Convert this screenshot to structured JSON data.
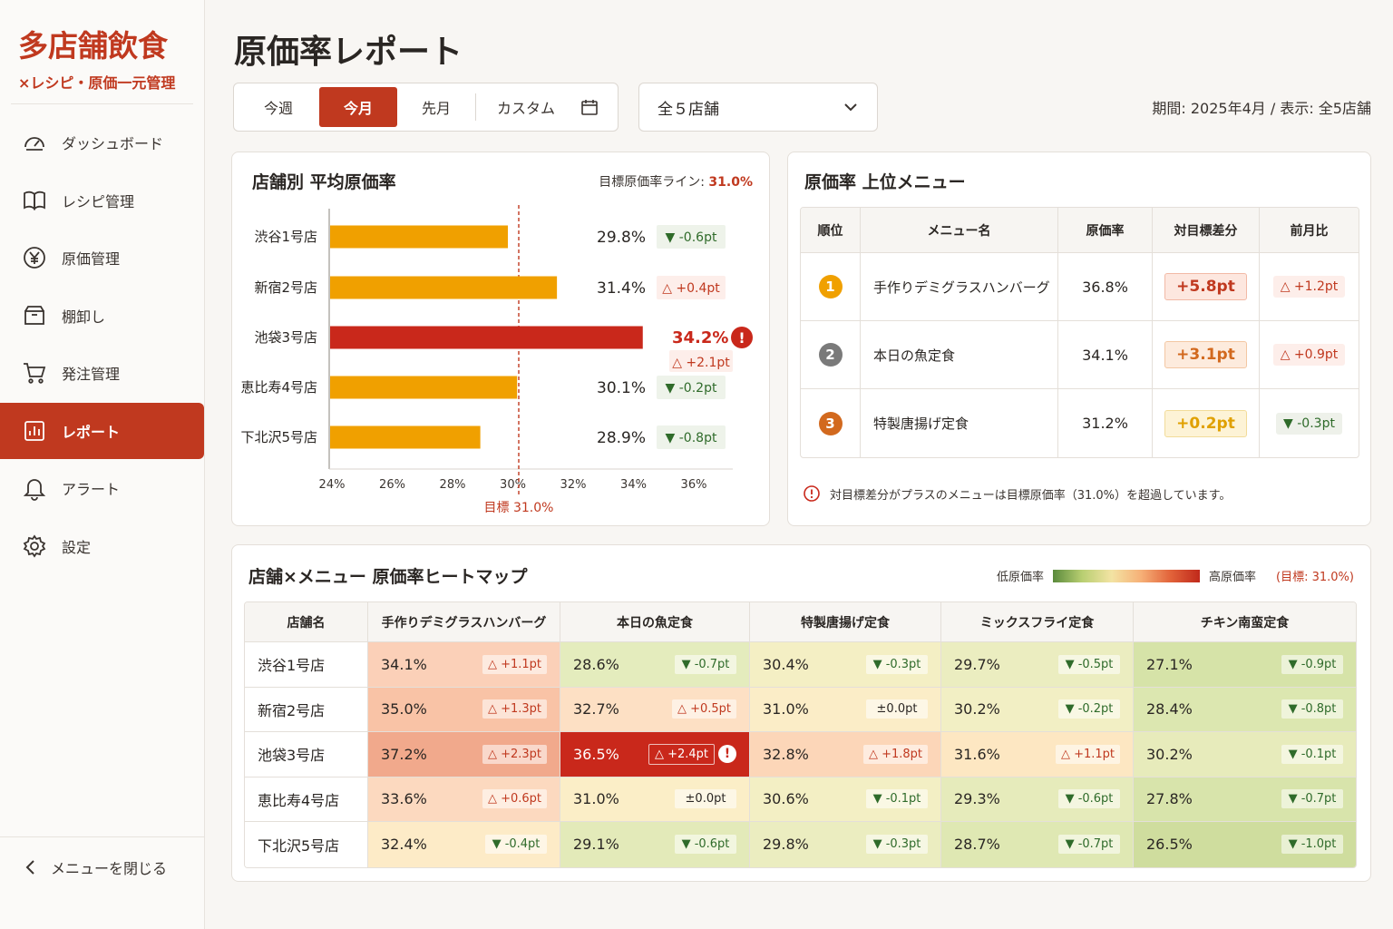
{
  "brand": {
    "title": "多店舗飲食",
    "subtitle": "×レシピ・原価一元管理"
  },
  "nav": [
    {
      "label": "ダッシュボード",
      "icon": "gauge-icon",
      "active": false
    },
    {
      "label": "レシピ管理",
      "icon": "book-icon",
      "active": false
    },
    {
      "label": "原価管理",
      "icon": "yen-icon",
      "active": false
    },
    {
      "label": "棚卸し",
      "icon": "box-icon",
      "active": false
    },
    {
      "label": "発注管理",
      "icon": "cart-icon",
      "active": false
    },
    {
      "label": "レポート",
      "icon": "report-icon",
      "active": true
    },
    {
      "label": "アラート",
      "icon": "bell-icon",
      "active": false
    },
    {
      "label": "設定",
      "icon": "gear-icon",
      "active": false
    }
  ],
  "close_menu": "メニューを閉じる",
  "page_title": "原価率レポート",
  "period_tabs": [
    {
      "label": "今週",
      "active": false
    },
    {
      "label": "今月",
      "active": true
    },
    {
      "label": "先月",
      "active": false
    },
    {
      "label": "カスタム",
      "active": false
    }
  ],
  "store_select": "全５店舗",
  "period_info": "期間: 2025年4月 / 表示: 全5店舗",
  "bar_card": {
    "title": "店舗別 平均原価率",
    "target_label": "目標原価率ライン:",
    "target_value": "31.0%",
    "target_axis_label": "目標 31.0%"
  },
  "chart_data": {
    "type": "bar",
    "orientation": "horizontal",
    "title": "店舗別 平均原価率",
    "categories": [
      "渋谷1号店",
      "新宿2号店",
      "池袋3号店",
      "恵比寿4号店",
      "下北沢5号店"
    ],
    "values": [
      29.8,
      31.4,
      34.2,
      30.1,
      28.9
    ],
    "value_labels": [
      "29.8%",
      "31.4%",
      "34.2%",
      "30.1%",
      "28.9%"
    ],
    "diffs": [
      "▼ -0.6pt",
      "△ +0.4pt",
      "△ +2.1pt",
      "▼ -0.2pt",
      "▼ -0.8pt"
    ],
    "alert": [
      false,
      false,
      true,
      false,
      false
    ],
    "xlim": [
      24,
      37
    ],
    "xticks": [
      24,
      26,
      28,
      30,
      32,
      34,
      36
    ],
    "xtick_labels": [
      "24%",
      "26%",
      "28%",
      "30%",
      "32%",
      "34%",
      "36%"
    ],
    "target": 31.0,
    "colors": {
      "normal": "#f0a000",
      "alert": "#c9281b",
      "target": "#c0391f"
    }
  },
  "rank_card": {
    "title": "原価率 上位メニュー",
    "headers": [
      "順位",
      "メニュー名",
      "原価率",
      "対目標差分",
      "前月比"
    ],
    "rows": [
      {
        "rank": "1",
        "name": "手作りデミグラスハンバーグ",
        "rate": "36.8%",
        "diff": "+5.8pt",
        "mom": "△ +1.2pt",
        "rank_color": "#f0a000"
      },
      {
        "rank": "2",
        "name": "本日の魚定食",
        "rate": "34.1%",
        "diff": "+3.1pt",
        "mom": "△ +0.9pt",
        "rank_color": "#7a7a7a"
      },
      {
        "rank": "3",
        "name": "特製唐揚げ定食",
        "rate": "31.2%",
        "diff": "+0.2pt",
        "mom": "▼ -0.3pt",
        "rank_color": "#d2691e"
      }
    ],
    "note": "対目標差分がプラスのメニューは目標原価率（31.0%）を超過しています。"
  },
  "heat_card": {
    "title": "店舗×メニュー 原価率ヒートマップ",
    "legend_low": "低原価率",
    "legend_high": "高原価率",
    "legend_target": "(目標: 31.0%)",
    "store_header": "店舗名",
    "menus": [
      "手作りデミグラスハンバーグ",
      "本日の魚定食",
      "特製唐揚げ定食",
      "ミックスフライ定食",
      "チキン南蛮定食"
    ],
    "rows": [
      {
        "store": "渋谷1号店",
        "cells": [
          {
            "v": "34.1%",
            "d": "△ +1.1pt",
            "bg": "#fbd0b8"
          },
          {
            "v": "28.6%",
            "d": "▼ -0.7pt",
            "bg": "#e4ecbd"
          },
          {
            "v": "30.4%",
            "d": "▼ -0.3pt",
            "bg": "#f4efc4"
          },
          {
            "v": "29.7%",
            "d": "▼ -0.5pt",
            "bg": "#ebedc0"
          },
          {
            "v": "27.1%",
            "d": "▼ -0.9pt",
            "bg": "#d6e3a8"
          }
        ]
      },
      {
        "store": "新宿2号店",
        "cells": [
          {
            "v": "35.0%",
            "d": "△ +1.3pt",
            "bg": "#f9c3a6"
          },
          {
            "v": "32.7%",
            "d": "△ +0.5pt",
            "bg": "#fde0c4"
          },
          {
            "v": "31.0%",
            "d": "±0.0pt",
            "bg": "#fbedc7"
          },
          {
            "v": "30.2%",
            "d": "▼ -0.2pt",
            "bg": "#f2efc4"
          },
          {
            "v": "28.4%",
            "d": "▼ -0.8pt",
            "bg": "#dce7b0"
          }
        ]
      },
      {
        "store": "池袋3号店",
        "cells": [
          {
            "v": "37.2%",
            "d": "△ +2.3pt",
            "bg": "#f1a98c",
            "alert": false
          },
          {
            "v": "36.5%",
            "d": "△ +2.4pt",
            "bg": "#c9281b",
            "alert": true
          },
          {
            "v": "32.8%",
            "d": "△ +1.8pt",
            "bg": "#fcd6b8"
          },
          {
            "v": "31.6%",
            "d": "△ +1.1pt",
            "bg": "#fde7c2"
          },
          {
            "v": "30.2%",
            "d": "▼ -0.1pt",
            "bg": "#e7ebbb"
          }
        ]
      },
      {
        "store": "恵比寿4号店",
        "cells": [
          {
            "v": "33.6%",
            "d": "△ +0.6pt",
            "bg": "#fcd9bf"
          },
          {
            "v": "31.0%",
            "d": "±0.0pt",
            "bg": "#fbeec7"
          },
          {
            "v": "30.6%",
            "d": "▼ -0.1pt",
            "bg": "#f3efc4"
          },
          {
            "v": "29.3%",
            "d": "▼ -0.6pt",
            "bg": "#e6ebbb"
          },
          {
            "v": "27.8%",
            "d": "▼ -0.7pt",
            "bg": "#d8e4ab"
          }
        ]
      },
      {
        "store": "下北沢5号店",
        "cells": [
          {
            "v": "32.4%",
            "d": "▼ -0.4pt",
            "bg": "#fdebc7"
          },
          {
            "v": "29.1%",
            "d": "▼ -0.6pt",
            "bg": "#e3eab9"
          },
          {
            "v": "29.8%",
            "d": "▼ -0.3pt",
            "bg": "#ebedc0"
          },
          {
            "v": "28.7%",
            "d": "▼ -0.7pt",
            "bg": "#dfe8b3"
          },
          {
            "v": "26.5%",
            "d": "▼ -1.0pt",
            "bg": "#cfdd9e"
          }
        ]
      }
    ]
  },
  "colors": {
    "accent": "#c0391f",
    "alert": "#c9281b",
    "bar": "#f0a000",
    "down": "#2f6b2a"
  }
}
